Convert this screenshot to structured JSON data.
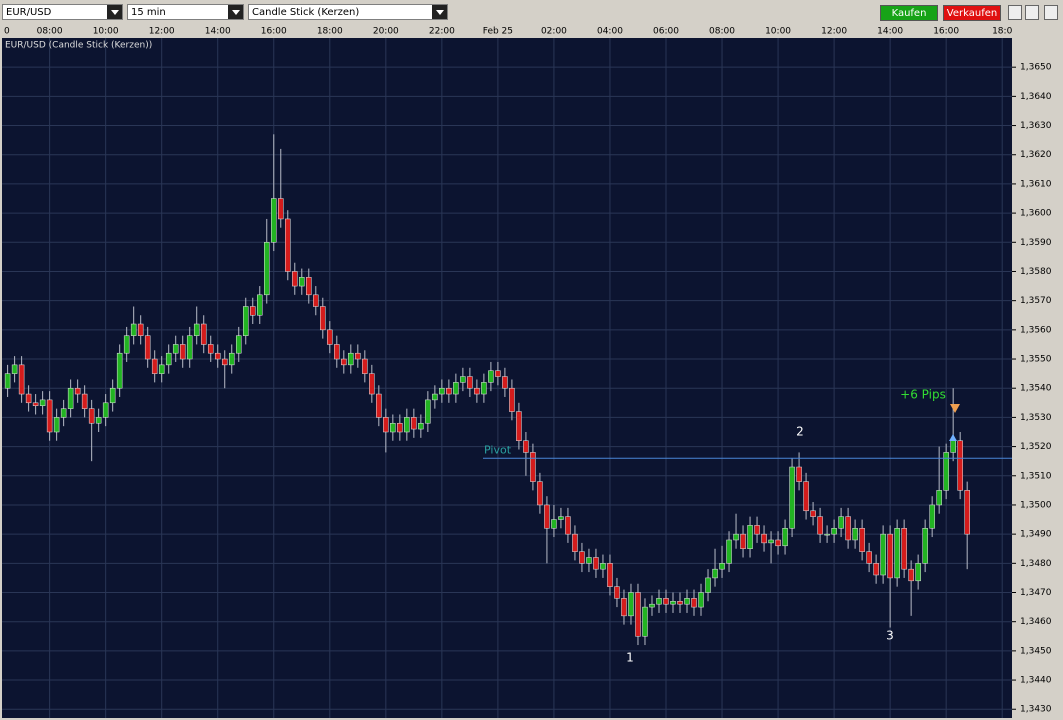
{
  "toolbar": {
    "symbol": "EUR/USD",
    "interval": "15 min",
    "chart_style": "Candle Stick (Kerzen)",
    "buy": "Kaufen",
    "sell": "Verkaufen"
  },
  "chart_data": {
    "type": "candlestick",
    "title": "EUR/USD (Candle Stick (Kerzen))",
    "x": [
      6.5,
      6.75,
      7,
      7.25,
      7.5,
      7.75,
      8,
      8.25,
      8.5,
      8.75,
      9,
      9.25,
      9.5,
      9.75,
      10,
      10.25,
      10.5,
      10.75,
      11,
      11.25,
      11.5,
      11.75,
      12,
      12.25,
      12.5,
      12.75,
      13,
      13.25,
      13.5,
      13.75,
      14,
      14.25,
      14.5,
      14.75,
      15,
      15.25,
      15.5,
      15.75,
      16,
      16.25,
      16.5,
      16.75,
      17,
      17.25,
      17.5,
      17.75,
      18,
      18.25,
      18.5,
      18.75,
      19,
      19.25,
      19.5,
      19.75,
      20,
      20.25,
      20.5,
      20.75,
      21,
      21.25,
      21.5,
      21.75,
      22,
      22.25,
      22.5,
      22.75,
      23,
      23.25,
      23.5,
      23.75,
      24,
      24.25,
      24.5,
      24.75,
      25,
      25.25,
      25.5,
      25.75,
      26,
      26.25,
      26.5,
      26.75,
      27,
      27.25,
      27.5,
      27.75,
      28,
      28.25,
      28.5,
      28.75,
      29,
      29.25,
      29.5,
      29.75,
      30,
      30.25,
      30.5,
      30.75,
      31,
      31.25,
      31.5,
      31.75,
      32,
      32.25,
      32.5,
      32.75,
      33,
      33.25,
      33.5,
      33.75,
      34,
      34.25,
      34.5,
      34.75,
      35,
      35.25,
      35.5,
      35.75,
      36,
      36.25,
      36.5,
      36.75,
      37,
      37.25,
      37.5,
      37.75,
      38,
      38.25,
      38.5,
      38.75,
      39,
      39.25,
      39.5,
      39.75,
      40,
      40.25,
      40.5,
      40.75
    ],
    "open": [
      1.354,
      1.3545,
      1.3548,
      1.3538,
      1.3535,
      1.3534,
      1.3536,
      1.3525,
      1.353,
      1.3533,
      1.354,
      1.3538,
      1.3533,
      1.3528,
      1.353,
      1.3535,
      1.354,
      1.3552,
      1.3558,
      1.3562,
      1.3558,
      1.355,
      1.3545,
      1.3548,
      1.3552,
      1.3555,
      1.355,
      1.3558,
      1.3562,
      1.3555,
      1.3552,
      1.355,
      1.3548,
      1.3552,
      1.3558,
      1.3568,
      1.3565,
      1.3572,
      1.359,
      1.3605,
      1.3598,
      1.358,
      1.3575,
      1.3578,
      1.3572,
      1.3568,
      1.356,
      1.3555,
      1.355,
      1.3548,
      1.3552,
      1.355,
      1.3545,
      1.3538,
      1.353,
      1.3525,
      1.3528,
      1.3525,
      1.353,
      1.3526,
      1.3528,
      1.3536,
      1.3538,
      1.354,
      1.3538,
      1.3542,
      1.3544,
      1.354,
      1.3538,
      1.3542,
      1.3546,
      1.3544,
      1.354,
      1.3532,
      1.3522,
      1.3518,
      1.3508,
      1.35,
      1.3492,
      1.3495,
      1.3496,
      1.349,
      1.3484,
      1.348,
      1.3482,
      1.3478,
      1.348,
      1.3472,
      1.3468,
      1.3462,
      1.347,
      1.3455,
      1.3465,
      1.3466,
      1.3468,
      1.3466,
      1.3467,
      1.3466,
      1.3468,
      1.3465,
      1.347,
      1.3475,
      1.3478,
      1.348,
      1.3488,
      1.349,
      1.3485,
      1.3493,
      1.349,
      1.3487,
      1.3488,
      1.3486,
      1.3492,
      1.3513,
      1.3508,
      1.3498,
      1.3496,
      1.349,
      1.349,
      1.3492,
      1.3496,
      1.3488,
      1.3492,
      1.3484,
      1.348,
      1.3476,
      1.349,
      1.3475,
      1.3492,
      1.3478,
      1.3474,
      1.348,
      1.3492,
      1.35,
      1.3505,
      1.3518,
      1.3522,
      1.3505
    ],
    "high": [
      1.3548,
      1.3551,
      1.3551,
      1.3541,
      1.3538,
      1.3539,
      1.3539,
      1.3533,
      1.3536,
      1.3543,
      1.3543,
      1.3541,
      1.3536,
      1.3533,
      1.3538,
      1.3543,
      1.3555,
      1.3561,
      1.3568,
      1.3565,
      1.3561,
      1.3553,
      1.3551,
      1.3555,
      1.3558,
      1.3558,
      1.3561,
      1.3568,
      1.3565,
      1.3558,
      1.3555,
      1.3553,
      1.3555,
      1.3561,
      1.3571,
      1.3571,
      1.3575,
      1.3598,
      1.3627,
      1.3622,
      1.3601,
      1.3583,
      1.3581,
      1.3581,
      1.3575,
      1.3571,
      1.3563,
      1.3558,
      1.3553,
      1.3555,
      1.3555,
      1.3553,
      1.3548,
      1.3541,
      1.3533,
      1.3531,
      1.3531,
      1.3533,
      1.3533,
      1.3531,
      1.3539,
      1.3541,
      1.3543,
      1.3543,
      1.3545,
      1.3547,
      1.3547,
      1.3543,
      1.3545,
      1.3549,
      1.3549,
      1.3547,
      1.3543,
      1.3535,
      1.3525,
      1.3521,
      1.3511,
      1.3503,
      1.35,
      1.3499,
      1.3499,
      1.3493,
      1.3487,
      1.3485,
      1.3485,
      1.3483,
      1.3483,
      1.3475,
      1.3471,
      1.3473,
      1.3473,
      1.3468,
      1.3469,
      1.3471,
      1.3471,
      1.347,
      1.347,
      1.3471,
      1.3471,
      1.3473,
      1.3478,
      1.3485,
      1.3486,
      1.3491,
      1.3497,
      1.3493,
      1.3496,
      1.3496,
      1.3493,
      1.3491,
      1.3491,
      1.3495,
      1.3516,
      1.3518,
      1.3511,
      1.3501,
      1.3499,
      1.3493,
      1.3495,
      1.3499,
      1.3499,
      1.3495,
      1.3495,
      1.3487,
      1.3483,
      1.3493,
      1.3493,
      1.3495,
      1.3495,
      1.3481,
      1.3483,
      1.3495,
      1.3503,
      1.352,
      1.3521,
      1.354,
      1.3525,
      1.3508
    ],
    "low": [
      1.3537,
      1.3542,
      1.3535,
      1.3532,
      1.3531,
      1.3531,
      1.3522,
      1.3522,
      1.3527,
      1.353,
      1.3535,
      1.353,
      1.3515,
      1.3525,
      1.3527,
      1.3532,
      1.3537,
      1.3549,
      1.3555,
      1.3555,
      1.3547,
      1.3542,
      1.3542,
      1.3545,
      1.3549,
      1.3547,
      1.3547,
      1.3555,
      1.3552,
      1.3549,
      1.3547,
      1.354,
      1.3545,
      1.3549,
      1.3555,
      1.3562,
      1.3562,
      1.3569,
      1.3587,
      1.3595,
      1.3577,
      1.3572,
      1.3572,
      1.3569,
      1.3565,
      1.3557,
      1.3552,
      1.3547,
      1.3545,
      1.3545,
      1.3547,
      1.3542,
      1.3535,
      1.3527,
      1.3518,
      1.3522,
      1.3522,
      1.3522,
      1.3523,
      1.3523,
      1.3525,
      1.3533,
      1.3535,
      1.3535,
      1.3535,
      1.3539,
      1.3537,
      1.3535,
      1.3535,
      1.3539,
      1.3541,
      1.3537,
      1.3529,
      1.3519,
      1.351,
      1.3505,
      1.3497,
      1.348,
      1.3489,
      1.3492,
      1.3487,
      1.3481,
      1.3477,
      1.3477,
      1.3475,
      1.3475,
      1.3469,
      1.3465,
      1.3459,
      1.3459,
      1.3452,
      1.3452,
      1.3462,
      1.3463,
      1.3463,
      1.3463,
      1.3463,
      1.3463,
      1.3462,
      1.3462,
      1.3467,
      1.3472,
      1.3475,
      1.3477,
      1.3485,
      1.3482,
      1.3482,
      1.3487,
      1.3484,
      1.348,
      1.3483,
      1.3483,
      1.3489,
      1.3505,
      1.3495,
      1.3493,
      1.3487,
      1.3487,
      1.3487,
      1.3489,
      1.3485,
      1.3485,
      1.3481,
      1.3477,
      1.3473,
      1.3473,
      1.3458,
      1.3472,
      1.3475,
      1.3462,
      1.3471,
      1.3477,
      1.3489,
      1.3497,
      1.3502,
      1.3515,
      1.3502,
      1.3478
    ],
    "close": [
      1.3545,
      1.3548,
      1.3538,
      1.3535,
      1.3534,
      1.3536,
      1.3525,
      1.353,
      1.3533,
      1.354,
      1.3538,
      1.3533,
      1.3528,
      1.353,
      1.3535,
      1.354,
      1.3552,
      1.3558,
      1.3562,
      1.3558,
      1.355,
      1.3545,
      1.3548,
      1.3552,
      1.3555,
      1.355,
      1.3558,
      1.3562,
      1.3555,
      1.3552,
      1.355,
      1.3548,
      1.3552,
      1.3558,
      1.3568,
      1.3565,
      1.3572,
      1.359,
      1.3605,
      1.3598,
      1.358,
      1.3575,
      1.3578,
      1.3572,
      1.3568,
      1.356,
      1.3555,
      1.355,
      1.3548,
      1.3552,
      1.355,
      1.3545,
      1.3538,
      1.353,
      1.3525,
      1.3528,
      1.3525,
      1.353,
      1.3526,
      1.3528,
      1.3536,
      1.3538,
      1.354,
      1.3538,
      1.3542,
      1.3544,
      1.354,
      1.3538,
      1.3542,
      1.3546,
      1.3544,
      1.354,
      1.3532,
      1.3522,
      1.3518,
      1.3508,
      1.35,
      1.3492,
      1.3495,
      1.3496,
      1.349,
      1.3484,
      1.348,
      1.3482,
      1.3478,
      1.348,
      1.3472,
      1.3468,
      1.3462,
      1.347,
      1.3455,
      1.3465,
      1.3466,
      1.3468,
      1.3466,
      1.3467,
      1.3466,
      1.3468,
      1.3465,
      1.347,
      1.3475,
      1.3478,
      1.348,
      1.3488,
      1.349,
      1.3485,
      1.3493,
      1.349,
      1.3487,
      1.3488,
      1.3486,
      1.3492,
      1.3513,
      1.3508,
      1.3498,
      1.3496,
      1.349,
      1.349,
      1.3492,
      1.3496,
      1.3488,
      1.3492,
      1.3484,
      1.348,
      1.3476,
      1.349,
      1.3475,
      1.3492,
      1.3478,
      1.3474,
      1.348,
      1.3492,
      1.35,
      1.3505,
      1.3518,
      1.3522,
      1.3505,
      1.349
    ],
    "up_color": "#22b422",
    "down_color": "#d41c1c",
    "xlim": [
      6.3,
      42.35
    ],
    "xticks": [
      {
        "value": 6,
        "label": "0"
      },
      {
        "value": 8,
        "label": "08:00"
      },
      {
        "value": 10,
        "label": "10:00"
      },
      {
        "value": 12,
        "label": "12:00"
      },
      {
        "value": 14,
        "label": "14:00"
      },
      {
        "value": 16,
        "label": "16:00"
      },
      {
        "value": 18,
        "label": "18:00"
      },
      {
        "value": 20,
        "label": "20:00"
      },
      {
        "value": 22,
        "label": "22:00"
      },
      {
        "value": 24,
        "label": "Feb 25"
      },
      {
        "value": 26,
        "label": "02:00"
      },
      {
        "value": 28,
        "label": "04:00"
      },
      {
        "value": 30,
        "label": "06:00"
      },
      {
        "value": 32,
        "label": "08:00"
      },
      {
        "value": 34,
        "label": "10:00"
      },
      {
        "value": 36,
        "label": "12:00"
      },
      {
        "value": 38,
        "label": "14:00"
      },
      {
        "value": 40,
        "label": "16:00"
      },
      {
        "value": 42,
        "label": "18:0"
      }
    ],
    "ylim": [
      1.3427,
      1.366
    ],
    "yticks": [
      {
        "value": 1.343,
        "label": "1,3430"
      },
      {
        "value": 1.344,
        "label": "1,3440"
      },
      {
        "value": 1.345,
        "label": "1,3450"
      },
      {
        "value": 1.346,
        "label": "1,3460"
      },
      {
        "value": 1.347,
        "label": "1,3470"
      },
      {
        "value": 1.348,
        "label": "1,3480"
      },
      {
        "value": 1.349,
        "label": "1,3490"
      },
      {
        "value": 1.35,
        "label": "1,3500"
      },
      {
        "value": 1.351,
        "label": "1,3510"
      },
      {
        "value": 1.352,
        "label": "1,3520"
      },
      {
        "value": 1.353,
        "label": "1,3530"
      },
      {
        "value": 1.354,
        "label": "1,3540"
      },
      {
        "value": 1.355,
        "label": "1,3550"
      },
      {
        "value": 1.356,
        "label": "1,3560"
      },
      {
        "value": 1.357,
        "label": "1,3570"
      },
      {
        "value": 1.358,
        "label": "1,3580"
      },
      {
        "value": 1.359,
        "label": "1,3590"
      },
      {
        "value": 1.36,
        "label": "1,3600"
      },
      {
        "value": 1.361,
        "label": "1,3610"
      },
      {
        "value": 1.362,
        "label": "1,3620"
      },
      {
        "value": 1.363,
        "label": "1,3630"
      },
      {
        "value": 1.364,
        "label": "1,3640"
      },
      {
        "value": 1.365,
        "label": "1,3650"
      }
    ],
    "grid": true,
    "pivot": {
      "label": "Pivot",
      "value": 1.3516
    },
    "annotations": [
      {
        "text": "1"
      },
      {
        "text": "2"
      },
      {
        "text": "3"
      },
      {
        "text": "+6 Pips"
      }
    ]
  }
}
